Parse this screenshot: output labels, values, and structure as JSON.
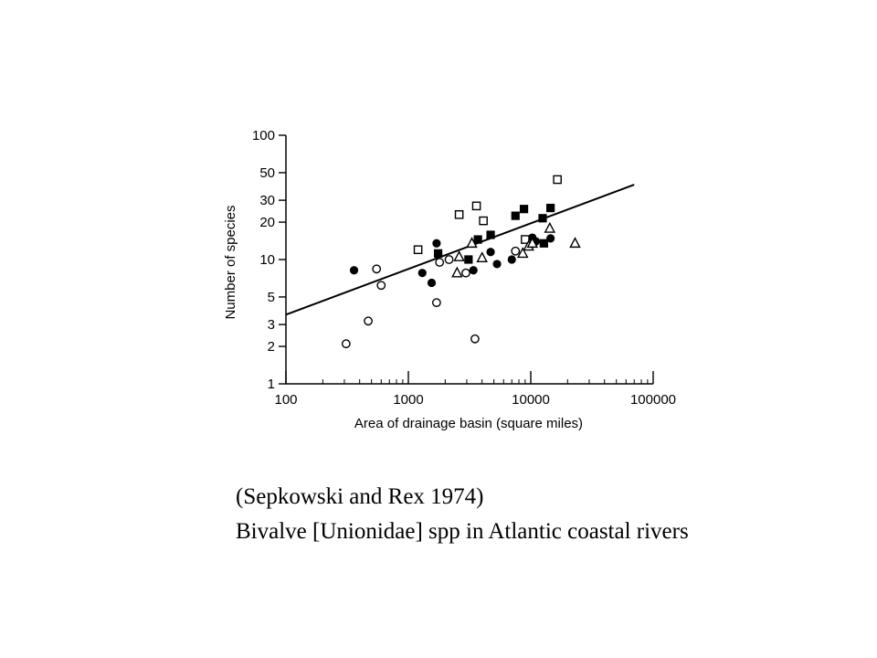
{
  "chart_data": {
    "type": "scatter",
    "xlabel": "Area of drainage basin (square miles)",
    "ylabel": "Number of species",
    "x_scale": "log",
    "y_scale": "log",
    "xlim": [
      100,
      100000
    ],
    "ylim": [
      1,
      100
    ],
    "x_ticks": [
      {
        "value": 100,
        "label": "100"
      },
      {
        "value": 1000,
        "label": "1000"
      },
      {
        "value": 10000,
        "label": "10000"
      },
      {
        "value": 100000,
        "label": "100000"
      }
    ],
    "y_ticks": [
      {
        "value": 1,
        "label": "1"
      },
      {
        "value": 2,
        "label": "2"
      },
      {
        "value": 3,
        "label": "3"
      },
      {
        "value": 5,
        "label": "5"
      },
      {
        "value": 10,
        "label": "10"
      },
      {
        "value": 20,
        "label": "20"
      },
      {
        "value": 30,
        "label": "30"
      },
      {
        "value": 50,
        "label": "50"
      },
      {
        "value": 100,
        "label": "100"
      }
    ],
    "grid": false,
    "series": [
      {
        "marker": "filled-circle",
        "points": [
          [
            360,
            8.2
          ],
          [
            1300,
            7.8
          ],
          [
            1550,
            6.5
          ],
          [
            1700,
            13.5
          ],
          [
            1750,
            11
          ],
          [
            3400,
            8.2
          ],
          [
            4700,
            11.5
          ],
          [
            5300,
            9.2
          ],
          [
            7000,
            10
          ],
          [
            10300,
            15
          ],
          [
            11000,
            14
          ],
          [
            14500,
            14.8
          ]
        ]
      },
      {
        "marker": "open-circle",
        "points": [
          [
            310,
            2.1
          ],
          [
            470,
            3.2
          ],
          [
            550,
            8.4
          ],
          [
            600,
            6.2
          ],
          [
            1700,
            4.5
          ],
          [
            1800,
            9.5
          ],
          [
            2150,
            10
          ],
          [
            2950,
            7.8
          ],
          [
            3500,
            2.3
          ],
          [
            7500,
            11.7
          ]
        ]
      },
      {
        "marker": "filled-square",
        "points": [
          [
            1750,
            11.2
          ],
          [
            3100,
            10
          ],
          [
            3700,
            14.5
          ],
          [
            4700,
            15.8
          ],
          [
            7500,
            22.5
          ],
          [
            8800,
            25.5
          ],
          [
            12500,
            21.5
          ],
          [
            12800,
            13.5
          ],
          [
            14500,
            26
          ]
        ]
      },
      {
        "marker": "open-square",
        "points": [
          [
            1200,
            12
          ],
          [
            2600,
            23
          ],
          [
            3600,
            27
          ],
          [
            4100,
            20.5
          ],
          [
            9000,
            14.5
          ],
          [
            16500,
            44
          ]
        ]
      },
      {
        "marker": "open-triangle",
        "points": [
          [
            2500,
            7.8
          ],
          [
            2600,
            10.5
          ],
          [
            3300,
            13.5
          ],
          [
            4000,
            10.3
          ],
          [
            8600,
            11.2
          ],
          [
            9600,
            12.8
          ],
          [
            10300,
            13.5
          ],
          [
            14300,
            17.8
          ],
          [
            23000,
            13.5
          ]
        ]
      }
    ],
    "fit_line": {
      "x": [
        100,
        70000
      ],
      "y": [
        3.6,
        40
      ]
    }
  },
  "caption": {
    "line1": "(Sepkowski and Rex 1974)",
    "line2": "Bivalve [Unionidae] spp in Atlantic coastal rivers"
  }
}
